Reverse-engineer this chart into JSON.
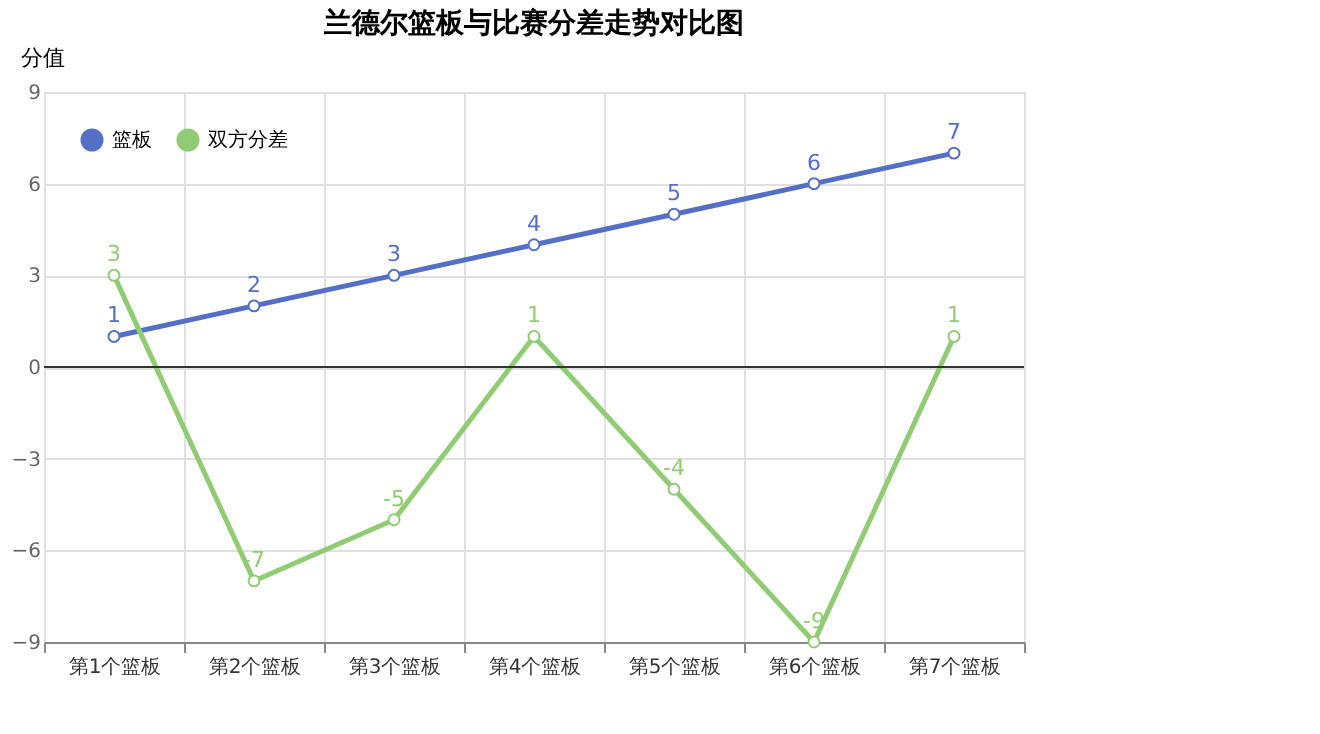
{
  "chart_data": {
    "type": "line",
    "title": "兰德尔篮板与比赛分差走势对比图",
    "ylabel": "分值",
    "categories": [
      "第1个篮板",
      "第2个篮板",
      "第3个篮板",
      "第4个篮板",
      "第5个篮板",
      "第6个篮板",
      "第7个篮板"
    ],
    "series": [
      {
        "name": "篮板",
        "color": "#5470c6",
        "values": [
          1,
          2,
          3,
          4,
          5,
          6,
          7
        ]
      },
      {
        "name": "双方分差",
        "color": "#91cc75",
        "values": [
          3,
          -7,
          -5,
          1,
          -4,
          -9,
          1
        ]
      }
    ],
    "ylim": [
      -9,
      9
    ],
    "yticks": [
      -9,
      -6,
      -3,
      0,
      3,
      6,
      9
    ],
    "grid": true,
    "legend": "top left",
    "marker": "circle",
    "line_style": "solid",
    "data_labels": true,
    "ref_lines": [
      {
        "axis": "y",
        "value": 0
      }
    ]
  }
}
